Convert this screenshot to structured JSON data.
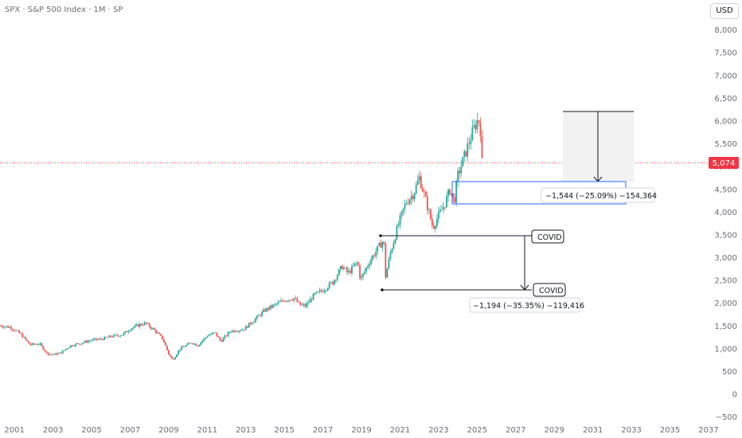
{
  "header": {
    "title": "SPX · S&P 500 Index · 1M · SP",
    "currency": "USD"
  },
  "colors": {
    "up": "#26a69a",
    "down": "#ef5350",
    "price_line": "#f23645",
    "measure_blue": "#2962ff",
    "box_fill": "#f2f2f2",
    "text": "#131722"
  },
  "chart_data": {
    "type": "candlestick",
    "symbol": "SPX",
    "name": "S&P 500 Index",
    "interval": "1M",
    "exchange": "SP",
    "currency": "USD",
    "last_price_label": "5,074",
    "last_price": 5074,
    "y_ticks": [
      "8,000",
      "7,500",
      "7,000",
      "6,500",
      "6,000",
      "5,500",
      "5,000",
      "4,500",
      "4,000",
      "3,500",
      "3,000",
      "2,500",
      "2,000",
      "1,500",
      "1,000",
      "500",
      "0",
      "−500"
    ],
    "y_tick_values": [
      8000,
      7500,
      7000,
      6500,
      6000,
      5500,
      5000,
      4500,
      4000,
      3500,
      3000,
      2500,
      2000,
      1500,
      1000,
      500,
      0,
      -500
    ],
    "ylim": [
      -620,
      8300
    ],
    "x_ticks": [
      "2001",
      "2003",
      "2005",
      "2007",
      "2009",
      "2011",
      "2013",
      "2015",
      "2017",
      "2019",
      "2021",
      "2023",
      "2025",
      "2027",
      "2029",
      "2031",
      "2033",
      "2035",
      "2037"
    ],
    "x_tick_values": [
      2001,
      2003,
      2005,
      2007,
      2009,
      2011,
      2013,
      2015,
      2017,
      2019,
      2021,
      2023,
      2025,
      2027,
      2029,
      2031,
      2033,
      2035,
      2037
    ],
    "xlim": [
      2000.25,
      2037.0
    ],
    "price_path": [
      [
        2000.25,
        1500
      ],
      [
        2000.8,
        1460
      ],
      [
        2001.3,
        1320
      ],
      [
        2001.8,
        1080
      ],
      [
        2002.3,
        1100
      ],
      [
        2002.7,
        880
      ],
      [
        2003.0,
        860
      ],
      [
        2003.4,
        900
      ],
      [
        2003.9,
        1060
      ],
      [
        2004.5,
        1120
      ],
      [
        2005.0,
        1180
      ],
      [
        2005.5,
        1200
      ],
      [
        2006.0,
        1260
      ],
      [
        2006.6,
        1300
      ],
      [
        2007.0,
        1430
      ],
      [
        2007.5,
        1520
      ],
      [
        2007.8,
        1550
      ],
      [
        2008.3,
        1380
      ],
      [
        2008.7,
        1200
      ],
      [
        2009.0,
        870
      ],
      [
        2009.2,
        740
      ],
      [
        2009.6,
        1000
      ],
      [
        2010.2,
        1130
      ],
      [
        2010.5,
        1060
      ],
      [
        2011.0,
        1280
      ],
      [
        2011.4,
        1340
      ],
      [
        2011.7,
        1150
      ],
      [
        2012.2,
        1380
      ],
      [
        2012.9,
        1420
      ],
      [
        2013.5,
        1650
      ],
      [
        2014.0,
        1840
      ],
      [
        2014.5,
        1950
      ],
      [
        2015.0,
        2060
      ],
      [
        2015.5,
        2100
      ],
      [
        2015.8,
        1950
      ],
      [
        2016.1,
        1930
      ],
      [
        2016.5,
        2150
      ],
      [
        2017.0,
        2280
      ],
      [
        2017.5,
        2450
      ],
      [
        2018.0,
        2800
      ],
      [
        2018.3,
        2650
      ],
      [
        2018.8,
        2900
      ],
      [
        2018.95,
        2500
      ],
      [
        2019.4,
        2900
      ],
      [
        2019.9,
        3230
      ],
      [
        2020.15,
        3380
      ],
      [
        2020.25,
        2580
      ],
      [
        2020.5,
        3100
      ],
      [
        2020.9,
        3700
      ],
      [
        2021.3,
        4200
      ],
      [
        2021.7,
        4400
      ],
      [
        2022.0,
        4750
      ],
      [
        2022.4,
        4150
      ],
      [
        2022.7,
        3650
      ],
      [
        2022.9,
        3840
      ],
      [
        2023.3,
        4150
      ],
      [
        2023.6,
        4500
      ],
      [
        2023.8,
        4200
      ],
      [
        2024.0,
        4800
      ],
      [
        2024.4,
        5300
      ],
      [
        2024.8,
        5800
      ],
      [
        2025.05,
        6040
      ],
      [
        2025.15,
        5950
      ],
      [
        2025.25,
        5074
      ]
    ]
  },
  "annotations": {
    "covid_label_1": "COVID",
    "covid_label_2": "COVID",
    "covid_measure": "−1,194 (−35.35%) −119,416",
    "projection_measure": "−1,544 (−25.09%) −154,364"
  }
}
